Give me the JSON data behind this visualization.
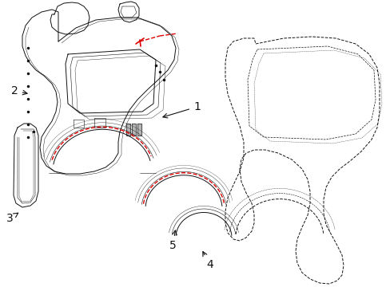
{
  "background_color": "#ffffff",
  "line_color": "#111111",
  "red_color": "#dd0000",
  "label_color": "#000000",
  "figsize": [
    4.89,
    3.6
  ],
  "dpi": 100
}
